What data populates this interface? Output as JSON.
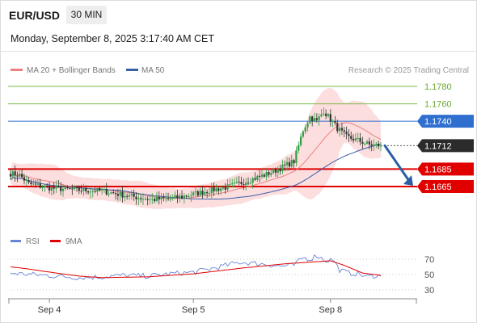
{
  "header": {
    "symbol": "EUR/USD",
    "timeframe": "30 MIN",
    "datetime": "Monday, September 8, 2025 3:17:40 AM CET"
  },
  "legend": {
    "ma20": "MA 20 + Bollinger Bands",
    "ma50": "MA 50",
    "credit": "Research © 2025 Trading Central",
    "rsi": "RSI",
    "rsi_ma": "9MA"
  },
  "colors": {
    "up": "#2e9e44",
    "down": "#333333",
    "ma20": "#f08080",
    "band_fill": "#fbd3d3",
    "ma50": "#3a5fa8",
    "resistance": "#7ab845",
    "pivot": "#2f6fd0",
    "support": "#e00000",
    "arrow": "#2a5fa5",
    "rsi": "#6a85d8",
    "rsi_ma": "#e00000"
  },
  "chart_data": [
    {
      "type": "candlestick",
      "y_range": [
        1.1645,
        1.179
      ],
      "levels": [
        {
          "value": 1.178,
          "label": "1.1780",
          "kind": "resistance"
        },
        {
          "value": 1.176,
          "label": "1.1760",
          "kind": "resistance"
        },
        {
          "value": 1.174,
          "label": "1.1740",
          "kind": "pivot"
        },
        {
          "value": 1.1685,
          "label": "1.1685",
          "kind": "support"
        },
        {
          "value": 1.1665,
          "label": "1.1665",
          "kind": "support"
        }
      ],
      "last_price": {
        "value": 1.1712,
        "label": "1.1712"
      },
      "x_ticks": [
        "Sep 4",
        "Sep 5",
        "Sep 8"
      ],
      "anchors": [
        {
          "i": 0,
          "p": 1.168
        },
        {
          "i": 4,
          "p": 1.1678
        },
        {
          "i": 8,
          "p": 1.1668
        },
        {
          "i": 18,
          "p": 1.1663
        },
        {
          "i": 30,
          "p": 1.1661
        },
        {
          "i": 40,
          "p": 1.166
        },
        {
          "i": 52,
          "p": 1.1654
        },
        {
          "i": 62,
          "p": 1.165
        },
        {
          "i": 70,
          "p": 1.1651
        },
        {
          "i": 78,
          "p": 1.1655
        },
        {
          "i": 88,
          "p": 1.1661
        },
        {
          "i": 96,
          "p": 1.1665
        },
        {
          "i": 104,
          "p": 1.1672
        },
        {
          "i": 112,
          "p": 1.1679
        },
        {
          "i": 118,
          "p": 1.1686
        },
        {
          "i": 124,
          "p": 1.1694
        },
        {
          "i": 128,
          "p": 1.173
        },
        {
          "i": 131,
          "p": 1.1745
        },
        {
          "i": 134,
          "p": 1.174
        },
        {
          "i": 137,
          "p": 1.1752
        },
        {
          "i": 140,
          "p": 1.1742
        },
        {
          "i": 143,
          "p": 1.1732
        },
        {
          "i": 147,
          "p": 1.1722
        },
        {
          "i": 152,
          "p": 1.1718
        },
        {
          "i": 157,
          "p": 1.1713
        },
        {
          "i": 162,
          "p": 1.1712
        }
      ],
      "forecast": {
        "from": 1.1712,
        "to": 1.1665
      }
    },
    {
      "type": "line",
      "name": "RSI",
      "y_range": [
        20,
        80
      ],
      "y_ticks": [
        70,
        50,
        30
      ],
      "anchors": [
        {
          "i": 0,
          "v": 52
        },
        {
          "i": 10,
          "v": 50
        },
        {
          "i": 20,
          "v": 48
        },
        {
          "i": 30,
          "v": 46
        },
        {
          "i": 40,
          "v": 47
        },
        {
          "i": 50,
          "v": 49
        },
        {
          "i": 60,
          "v": 48
        },
        {
          "i": 70,
          "v": 51
        },
        {
          "i": 80,
          "v": 53
        },
        {
          "i": 90,
          "v": 59
        },
        {
          "i": 100,
          "v": 66
        },
        {
          "i": 110,
          "v": 64
        },
        {
          "i": 118,
          "v": 61
        },
        {
          "i": 124,
          "v": 62
        },
        {
          "i": 128,
          "v": 72
        },
        {
          "i": 131,
          "v": 70
        },
        {
          "i": 134,
          "v": 75
        },
        {
          "i": 138,
          "v": 68
        },
        {
          "i": 141,
          "v": 70
        },
        {
          "i": 144,
          "v": 56
        },
        {
          "i": 148,
          "v": 52
        },
        {
          "i": 152,
          "v": 51
        },
        {
          "i": 156,
          "v": 47
        },
        {
          "i": 160,
          "v": 49
        },
        {
          "i": 162,
          "v": 48
        }
      ],
      "ma_anchors": [
        {
          "i": 0,
          "v": 60
        },
        {
          "i": 6,
          "v": 58
        },
        {
          "i": 20,
          "v": 52
        },
        {
          "i": 30,
          "v": 48
        },
        {
          "i": 40,
          "v": 46
        },
        {
          "i": 60,
          "v": 47
        },
        {
          "i": 80,
          "v": 51
        },
        {
          "i": 100,
          "v": 58
        },
        {
          "i": 120,
          "v": 64
        },
        {
          "i": 130,
          "v": 66
        },
        {
          "i": 140,
          "v": 68
        },
        {
          "i": 146,
          "v": 62
        },
        {
          "i": 154,
          "v": 52
        },
        {
          "i": 162,
          "v": 49
        }
      ]
    }
  ]
}
